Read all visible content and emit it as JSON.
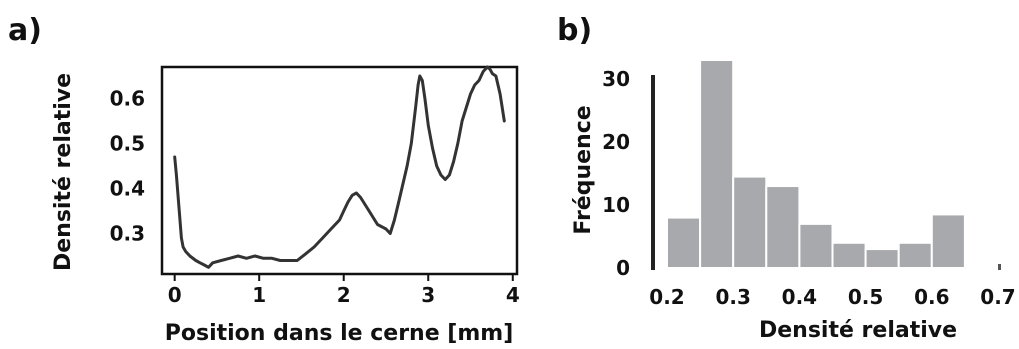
{
  "chart_data": [
    {
      "panel_label": "a)",
      "type": "line",
      "xlabel": "Position dans le cerne [mm]",
      "ylabel": "Densité relative",
      "xlim": [
        -0.15,
        4.05
      ],
      "ylim": [
        0.21,
        0.67
      ],
      "xticks": [
        0,
        1,
        2,
        3,
        4
      ],
      "yticks": [
        0.3,
        0.4,
        0.5,
        0.6
      ],
      "grid": false,
      "x": [
        0.0,
        0.02,
        0.05,
        0.08,
        0.1,
        0.13,
        0.18,
        0.25,
        0.3,
        0.35,
        0.4,
        0.45,
        0.55,
        0.65,
        0.75,
        0.85,
        0.95,
        1.05,
        1.15,
        1.25,
        1.35,
        1.45,
        1.55,
        1.65,
        1.75,
        1.85,
        1.95,
        2.0,
        2.05,
        2.1,
        2.15,
        2.2,
        2.3,
        2.4,
        2.5,
        2.55,
        2.6,
        2.65,
        2.7,
        2.75,
        2.8,
        2.85,
        2.88,
        2.9,
        2.93,
        2.96,
        3.0,
        3.05,
        3.1,
        3.15,
        3.2,
        3.25,
        3.3,
        3.35,
        3.4,
        3.45,
        3.5,
        3.55,
        3.6,
        3.65,
        3.7,
        3.73,
        3.76,
        3.8,
        3.85,
        3.9
      ],
      "y": [
        0.47,
        0.43,
        0.36,
        0.29,
        0.27,
        0.26,
        0.25,
        0.24,
        0.235,
        0.23,
        0.225,
        0.235,
        0.24,
        0.245,
        0.25,
        0.245,
        0.25,
        0.245,
        0.245,
        0.24,
        0.24,
        0.24,
        0.255,
        0.27,
        0.29,
        0.31,
        0.33,
        0.35,
        0.37,
        0.385,
        0.39,
        0.38,
        0.35,
        0.32,
        0.31,
        0.3,
        0.33,
        0.37,
        0.41,
        0.45,
        0.5,
        0.58,
        0.63,
        0.65,
        0.64,
        0.6,
        0.54,
        0.49,
        0.45,
        0.43,
        0.42,
        0.43,
        0.46,
        0.5,
        0.55,
        0.58,
        0.61,
        0.63,
        0.64,
        0.66,
        0.67,
        0.665,
        0.655,
        0.65,
        0.61,
        0.55
      ]
    },
    {
      "panel_label": "b)",
      "type": "bar",
      "xlabel": "Densité relative",
      "ylabel": "Fréquence",
      "xlim": [
        0.2,
        0.7
      ],
      "ylim": [
        0,
        33
      ],
      "xticks": [
        0.2,
        0.3,
        0.4,
        0.5,
        0.6,
        0.7
      ],
      "xtick_labels": [
        "0.2",
        "0.3",
        "0.4",
        "0.5",
        "0.6",
        "0.7"
      ],
      "yticks": [
        0,
        10,
        20,
        30
      ],
      "grid": false,
      "bin_edges": [
        0.2,
        0.25,
        0.3,
        0.35,
        0.4,
        0.45,
        0.5,
        0.55,
        0.6,
        0.65
      ],
      "values": [
        8,
        33,
        14.5,
        13,
        7,
        4,
        3,
        4,
        8.5
      ],
      "color": "#a7a9ac"
    }
  ]
}
